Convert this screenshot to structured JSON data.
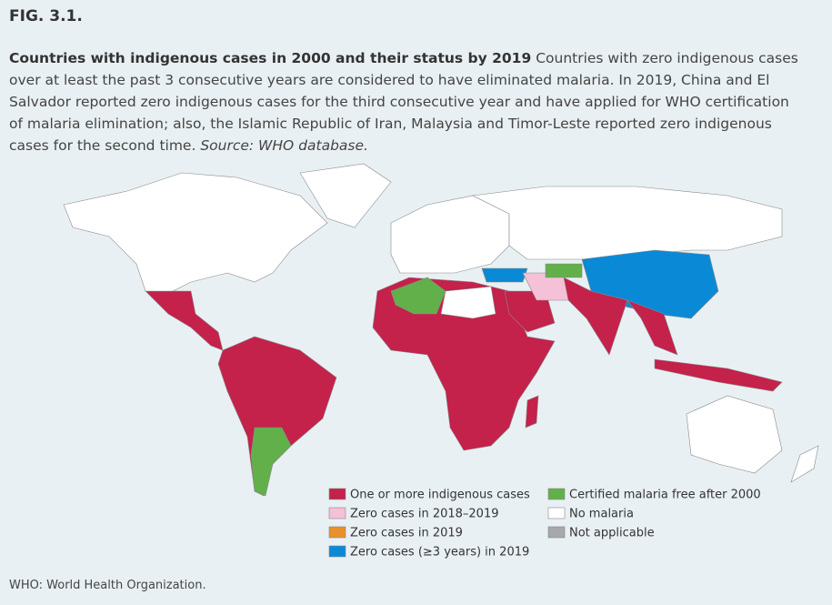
{
  "figure_label": "FIG. 3.1.",
  "caption": {
    "title": "Countries with indigenous cases in 2000 and their status by 2019",
    "text": "Countries with zero indigenous cases over at least the past 3 consecutive years are considered to have eliminated malaria. In 2019, China and El Salvador reported zero indigenous cases for the third consecutive year and have applied for WHO certification of malaria elimination; also, the Islamic Republic of Iran, Malaysia and Timor-Leste reported zero indigenous cases for the second time.",
    "source": "Source: WHO database."
  },
  "legend": {
    "items": [
      {
        "label": "One or more indigenous cases",
        "color": "#c4214b"
      },
      {
        "label": "Zero cases in 2018–2019",
        "color": "#f5c1d6"
      },
      {
        "label": "Zero cases in 2019",
        "color": "#e8912a"
      },
      {
        "label": "Zero cases (≥3 years) in 2019",
        "color": "#0a8ad6"
      },
      {
        "label": "Certified malaria free after 2000",
        "color": "#62b04a"
      },
      {
        "label": "No malaria",
        "color": "#ffffff"
      },
      {
        "label": "Not applicable",
        "color": "#a6a8ab"
      }
    ]
  },
  "footnote": "WHO: World Health Organization."
}
